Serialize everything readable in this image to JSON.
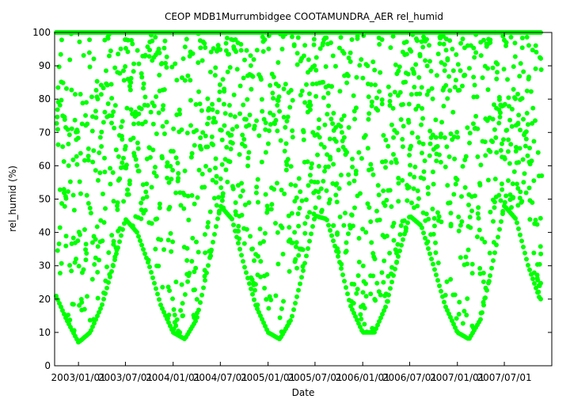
{
  "chart_data": {
    "type": "scatter",
    "title": "CEOP MDB1Murrumbidgee COOTAMUNDRA_AER  rel_humid",
    "xlabel": "Date",
    "ylabel": "rel_humid (%)",
    "ylim": [
      0,
      100
    ],
    "yticks": [
      0,
      10,
      20,
      30,
      40,
      50,
      60,
      70,
      80,
      90,
      100
    ],
    "xlim": [
      "2002-10-01",
      "2007-12-31"
    ],
    "xticks": [
      "2003/01/01",
      "2003/07/01",
      "2004/01/01",
      "2004/07/01",
      "2005/01/01",
      "2005/07/01",
      "2006/01/01",
      "2006/07/01",
      "2007/01/01",
      "2007/07/01"
    ],
    "grid": false,
    "legend": "none",
    "marker_color": "#00ff00",
    "series": [
      {
        "x": [
          "2002-10-01",
          "2002-11-15",
          "2003-01-01",
          "2003-02-15",
          "2003-04-01",
          "2003-05-15",
          "2003-07-01",
          "2003-08-15",
          "2003-10-01",
          "2003-11-15",
          "2004-01-01",
          "2004-02-15",
          "2004-04-01",
          "2004-05-15",
          "2004-07-01",
          "2004-08-15",
          "2004-10-01",
          "2004-11-15",
          "2005-01-01",
          "2005-02-15",
          "2005-04-01",
          "2005-05-15",
          "2005-07-01",
          "2005-08-15",
          "2005-10-01",
          "2005-11-15",
          "2006-01-01",
          "2006-02-15",
          "2006-04-01",
          "2006-05-15",
          "2006-07-01",
          "2006-08-15",
          "2006-10-01",
          "2006-11-15",
          "2007-01-01",
          "2007-02-15",
          "2007-04-01",
          "2007-05-15",
          "2007-07-01",
          "2007-08-15",
          "2007-10-01",
          "2007-11-15",
          "2007-12-31"
        ],
        "min": [
          22,
          14,
          7,
          10,
          18,
          30,
          44,
          40,
          30,
          18,
          10,
          8,
          14,
          30,
          48,
          44,
          30,
          18,
          10,
          8,
          14,
          28,
          45,
          44,
          32,
          18,
          10,
          10,
          18,
          32,
          45,
          42,
          30,
          18,
          10,
          8,
          14,
          30,
          48,
          44,
          30,
          20,
          20
        ],
        "max": [
          100,
          100,
          100,
          100,
          100,
          100,
          100,
          100,
          100,
          100,
          100,
          100,
          100,
          100,
          100,
          100,
          100,
          100,
          100,
          100,
          100,
          100,
          100,
          100,
          100,
          100,
          100,
          100,
          100,
          100,
          100,
          100,
          100,
          100,
          100,
          100,
          100,
          100,
          100,
          100,
          100,
          100,
          100
        ]
      }
    ]
  }
}
